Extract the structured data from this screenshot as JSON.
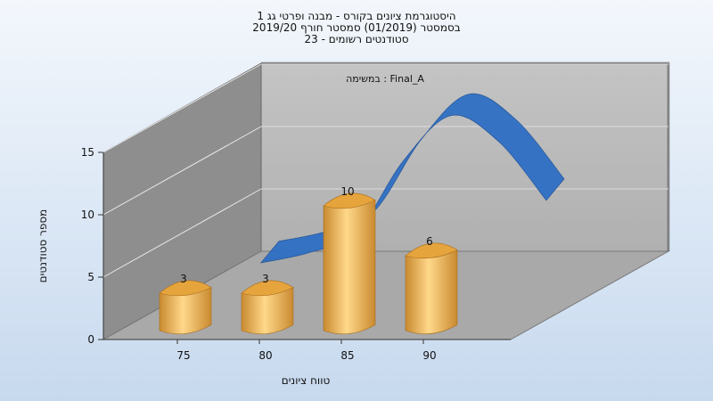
{
  "chart_data": {
    "type": "bar",
    "title_lines": [
      "היסטוגרמת ציונים בקורס - מבנה ופרטי גג 1",
      "בסמסטר  (01/2019)  סמסטר חורף 2019/20",
      "סטודנטים רשומים - 23"
    ],
    "series_label": "במשימה : Final_A",
    "xlabel": "טווח ציונים",
    "ylabel": "מספר סטודנטים",
    "categories": [
      "75",
      "80",
      "85",
      "90"
    ],
    "values": [
      3,
      3,
      10,
      6
    ],
    "data_labels": [
      "3",
      "3",
      "10",
      "6"
    ],
    "y_ticks": [
      0,
      5,
      10,
      15
    ],
    "y_tick_labels": [
      "0",
      "5",
      "10",
      "15"
    ],
    "ylim": [
      0,
      15
    ],
    "curve": {
      "name": "distribution curve",
      "x": [
        72,
        76,
        80,
        84,
        88,
        92,
        96
      ],
      "y": [
        0.8,
        1.6,
        3.2,
        9.0,
        12.6,
        10.5,
        5.8
      ]
    },
    "colors": {
      "bar": "#f2b14c",
      "bar_dark": "#c9852a",
      "curve": "#2f6fc4",
      "wall": "#b7b7b7",
      "left_wall": "#8c8c8c",
      "floor": "#a8a8a8"
    }
  }
}
